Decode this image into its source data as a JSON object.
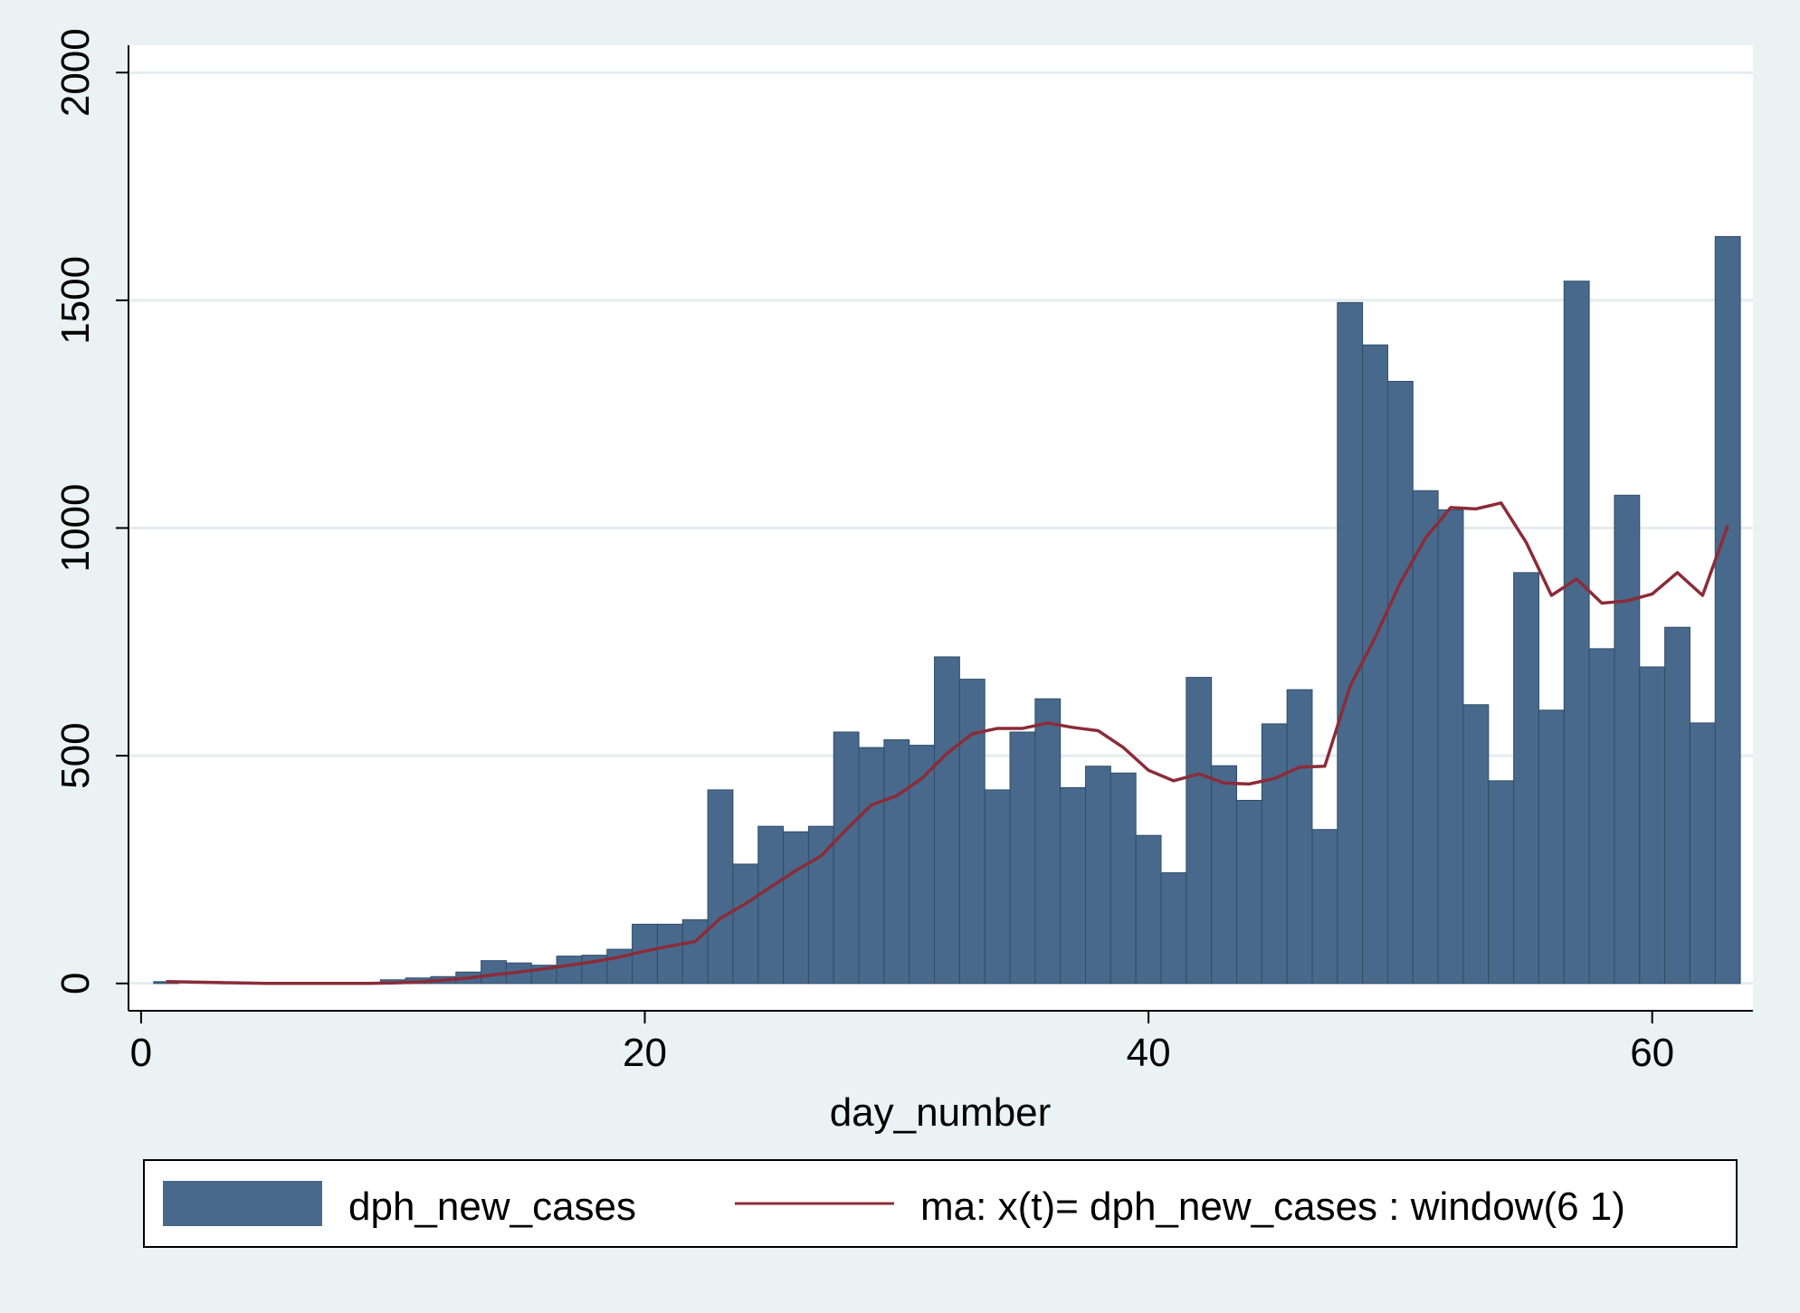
{
  "chart_data": {
    "type": "bar",
    "xlabel": "day_number",
    "ylabel": "",
    "xlim": [
      -0.5,
      64
    ],
    "ylim": [
      -60,
      2060
    ],
    "xticks": [
      "0",
      "20",
      "40",
      "60"
    ],
    "yticks": [
      "0",
      "500",
      "1000",
      "1500",
      "2000"
    ],
    "grid": true,
    "legend_position": "bottom",
    "x": [
      1,
      2,
      3,
      4,
      5,
      6,
      7,
      8,
      9,
      10,
      11,
      12,
      13,
      14,
      15,
      16,
      17,
      18,
      19,
      20,
      21,
      22,
      23,
      24,
      25,
      26,
      27,
      28,
      29,
      30,
      31,
      32,
      33,
      34,
      35,
      36,
      37,
      38,
      39,
      40,
      41,
      42,
      43,
      44,
      45,
      46,
      47,
      48,
      49,
      50,
      51,
      52,
      53,
      54,
      55,
      56,
      57,
      58,
      59,
      60,
      61,
      62,
      63
    ],
    "series": [
      {
        "name": "dph_new_cases",
        "kind": "bar",
        "color": "#48698b",
        "values": [
          4,
          0,
          0,
          0,
          0,
          0,
          0,
          1,
          1,
          8,
          12,
          15,
          25,
          50,
          45,
          40,
          60,
          62,
          75,
          130,
          130,
          140,
          425,
          262,
          345,
          333,
          345,
          552,
          518,
          535,
          523,
          717,
          668,
          425,
          552,
          625,
          430,
          477,
          462,
          325,
          243,
          672,
          478,
          402,
          570,
          645,
          338,
          1495,
          1402,
          1322,
          1082,
          1040,
          612,
          445,
          902,
          600,
          1542,
          735,
          1072,
          695,
          782,
          572,
          1640
        ]
      },
      {
        "name": "ma: x(t)= dph_new_cases : window(6 1)",
        "kind": "line",
        "color": "#8b2c38",
        "values": [
          4,
          3,
          2,
          1,
          0,
          0,
          0,
          0,
          0,
          1,
          3,
          7,
          12,
          19,
          25,
          32,
          40,
          48,
          58,
          71,
          82,
          92,
          143,
          175,
          212,
          248,
          280,
          338,
          392,
          412,
          450,
          505,
          548,
          560,
          560,
          572,
          562,
          555,
          518,
          468,
          445,
          460,
          440,
          438,
          450,
          475,
          477,
          652,
          760,
          880,
          978,
          1045,
          1042,
          1055,
          968,
          852,
          888,
          835,
          840,
          855,
          902,
          852,
          1005
        ]
      }
    ]
  }
}
